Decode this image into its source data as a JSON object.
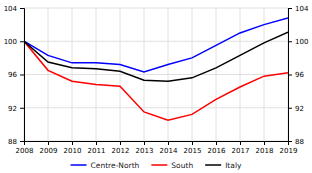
{
  "chart_data": {
    "type": "line",
    "x": [
      2008,
      2009,
      2010,
      2011,
      2012,
      2013,
      2014,
      2015,
      2016,
      2017,
      2018,
      2019
    ],
    "series": [
      {
        "name": "Centre-North",
        "color": "#0000ff",
        "values": [
          100,
          98.3,
          97.4,
          97.4,
          97.2,
          96.3,
          97.2,
          98.0,
          99.5,
          101.0,
          102.0,
          102.8
        ]
      },
      {
        "name": "South",
        "color": "#ff0000",
        "values": [
          100,
          96.5,
          95.2,
          94.8,
          94.6,
          91.5,
          90.5,
          91.2,
          93.0,
          94.5,
          95.8,
          96.2
        ]
      },
      {
        "name": "Italy",
        "color": "#000000",
        "values": [
          100,
          97.5,
          96.8,
          96.7,
          96.4,
          95.3,
          95.2,
          95.6,
          96.8,
          98.3,
          99.8,
          101.1
        ]
      }
    ],
    "xlim": [
      2008,
      2019
    ],
    "xticks": [
      2008,
      2009,
      2010,
      2011,
      2012,
      2013,
      2014,
      2015,
      2016,
      2017,
      2018,
      2019
    ],
    "ylim": [
      88,
      104
    ],
    "yticks": [
      88,
      92,
      96,
      100,
      104
    ],
    "y2lim": [
      88,
      104
    ],
    "y2ticks": [
      88,
      92,
      96,
      100,
      104
    ],
    "grid": true,
    "legend": "bottom"
  }
}
